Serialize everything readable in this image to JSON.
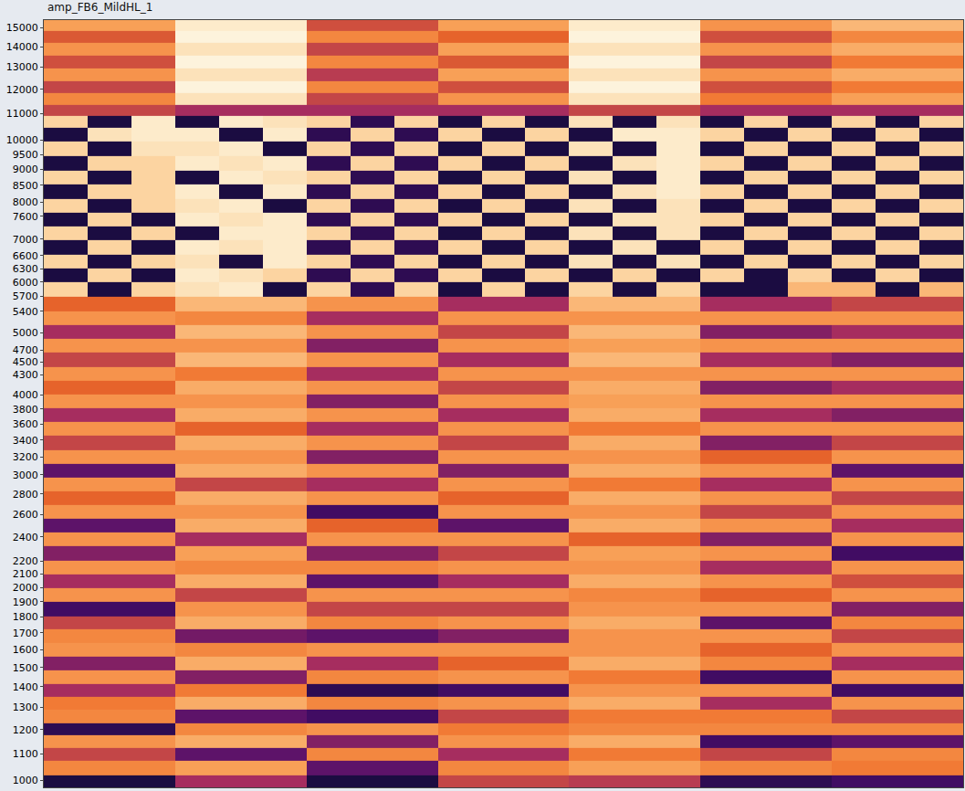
{
  "chart_data": {
    "type": "heatmap",
    "title": "amp_FB6_MildHL_1",
    "log": "y",
    "grid": false,
    "tick_labels": "y",
    "ylim": [
      975,
      15400
    ],
    "yticks": [
      1000,
      1100,
      1200,
      1300,
      1400,
      1500,
      1600,
      1700,
      1800,
      1900,
      2000,
      2100,
      2200,
      2400,
      2600,
      2800,
      3000,
      3200,
      3400,
      3600,
      3800,
      4000,
      4300,
      4500,
      4700,
      5000,
      5400,
      5700,
      6000,
      6300,
      6600,
      7000,
      7600,
      8000,
      8500,
      9000,
      9500,
      10000,
      11000,
      12000,
      13000,
      14000,
      15000
    ],
    "y": [
      990,
      1050,
      1100,
      1150,
      1200,
      1260,
      1320,
      1380,
      1450,
      1520,
      1600,
      1680,
      1760,
      1850,
      1950,
      2050,
      2150,
      2260,
      2380,
      2500,
      2630,
      2760,
      2900,
      3050,
      3200,
      3370,
      3540,
      3720,
      3910,
      4110,
      4320,
      4540,
      4770,
      5010,
      5270,
      5540,
      5850,
      6150,
      6450,
      6800,
      7150,
      7500,
      7900,
      8300,
      8750,
      9200,
      9700,
      10200,
      10700,
      11100,
      11600,
      12100,
      12650,
      13250,
      13850,
      14500,
      15100
    ],
    "z": [
      [
        30,
        30,
        30,
        55,
        55,
        55,
        30,
        30,
        30,
        60,
        60,
        60,
        58,
        58,
        58,
        35,
        35,
        35,
        40,
        40,
        40
      ],
      [
        72,
        72,
        72,
        76,
        76,
        76,
        45,
        45,
        45,
        72,
        72,
        72,
        76,
        76,
        76,
        72,
        72,
        72,
        70,
        70,
        70
      ],
      [
        60,
        60,
        60,
        45,
        45,
        45,
        72,
        72,
        72,
        55,
        55,
        55,
        70,
        70,
        70,
        60,
        60,
        60,
        72,
        72,
        72
      ],
      [
        74,
        74,
        74,
        78,
        78,
        78,
        50,
        50,
        50,
        74,
        74,
        74,
        78,
        78,
        78,
        40,
        40,
        40,
        45,
        45,
        45
      ],
      [
        35,
        35,
        35,
        72,
        72,
        72,
        74,
        74,
        74,
        70,
        70,
        70,
        72,
        72,
        72,
        72,
        72,
        72,
        72,
        72,
        72
      ],
      [
        72,
        72,
        72,
        45,
        45,
        45,
        40,
        40,
        40,
        60,
        60,
        60,
        70,
        70,
        70,
        70,
        70,
        70,
        60,
        60,
        60
      ],
      [
        70,
        70,
        70,
        78,
        78,
        78,
        72,
        72,
        72,
        74,
        74,
        74,
        78,
        78,
        78,
        55,
        55,
        55,
        74,
        74,
        74
      ],
      [
        55,
        55,
        55,
        70,
        70,
        70,
        35,
        35,
        35,
        40,
        40,
        40,
        74,
        74,
        74,
        74,
        74,
        74,
        40,
        40,
        40
      ],
      [
        74,
        74,
        74,
        50,
        50,
        50,
        72,
        72,
        72,
        74,
        74,
        74,
        70,
        70,
        70,
        40,
        40,
        40,
        74,
        74,
        74
      ],
      [
        50,
        50,
        50,
        78,
        78,
        78,
        55,
        55,
        55,
        66,
        66,
        66,
        78,
        78,
        78,
        72,
        72,
        72,
        55,
        55,
        55
      ],
      [
        74,
        74,
        74,
        72,
        72,
        72,
        74,
        74,
        74,
        74,
        74,
        74,
        74,
        74,
        74,
        66,
        66,
        66,
        74,
        74,
        74
      ],
      [
        72,
        72,
        72,
        48,
        48,
        48,
        45,
        45,
        45,
        50,
        50,
        50,
        74,
        74,
        74,
        74,
        74,
        74,
        60,
        60,
        60
      ],
      [
        60,
        60,
        60,
        78,
        78,
        78,
        72,
        72,
        72,
        74,
        74,
        74,
        78,
        78,
        78,
        45,
        45,
        45,
        72,
        72,
        72
      ],
      [
        40,
        40,
        40,
        74,
        74,
        74,
        60,
        60,
        60,
        60,
        60,
        60,
        74,
        74,
        74,
        74,
        74,
        74,
        50,
        50,
        50
      ],
      [
        74,
        74,
        74,
        60,
        60,
        60,
        74,
        74,
        74,
        74,
        74,
        74,
        72,
        72,
        72,
        66,
        66,
        66,
        74,
        74,
        74
      ],
      [
        55,
        55,
        55,
        78,
        78,
        78,
        45,
        45,
        45,
        55,
        55,
        55,
        78,
        78,
        78,
        74,
        74,
        74,
        62,
        62,
        62
      ],
      [
        74,
        74,
        74,
        72,
        72,
        72,
        72,
        72,
        72,
        74,
        74,
        74,
        74,
        74,
        74,
        55,
        55,
        55,
        74,
        74,
        74
      ],
      [
        50,
        50,
        50,
        76,
        76,
        76,
        50,
        50,
        50,
        60,
        60,
        60,
        76,
        76,
        76,
        74,
        74,
        74,
        40,
        40,
        40
      ],
      [
        74,
        74,
        74,
        55,
        55,
        55,
        74,
        74,
        74,
        74,
        74,
        74,
        66,
        66,
        66,
        50,
        50,
        50,
        74,
        74,
        74
      ],
      [
        45,
        45,
        45,
        78,
        78,
        78,
        66,
        66,
        66,
        45,
        45,
        45,
        78,
        78,
        78,
        74,
        74,
        74,
        55,
        55,
        55
      ],
      [
        74,
        74,
        74,
        74,
        74,
        74,
        40,
        40,
        40,
        74,
        74,
        74,
        74,
        74,
        74,
        60,
        60,
        60,
        74,
        74,
        74
      ],
      [
        66,
        66,
        66,
        78,
        78,
        78,
        74,
        74,
        74,
        66,
        66,
        66,
        78,
        78,
        78,
        74,
        74,
        74,
        60,
        60,
        60
      ],
      [
        74,
        74,
        74,
        60,
        60,
        60,
        55,
        55,
        55,
        74,
        74,
        74,
        70,
        70,
        70,
        55,
        55,
        55,
        74,
        74,
        74
      ],
      [
        45,
        45,
        45,
        78,
        78,
        78,
        74,
        74,
        74,
        50,
        50,
        50,
        78,
        78,
        78,
        74,
        74,
        74,
        45,
        45,
        45
      ],
      [
        74,
        74,
        74,
        74,
        74,
        74,
        50,
        50,
        50,
        74,
        74,
        74,
        74,
        74,
        74,
        66,
        66,
        66,
        74,
        74,
        74
      ],
      [
        60,
        60,
        60,
        78,
        78,
        78,
        74,
        74,
        74,
        60,
        60,
        60,
        78,
        78,
        78,
        50,
        50,
        50,
        60,
        60,
        60
      ],
      [
        74,
        74,
        74,
        66,
        66,
        66,
        55,
        55,
        55,
        74,
        74,
        74,
        70,
        70,
        70,
        74,
        74,
        74,
        74,
        74,
        74
      ],
      [
        55,
        55,
        55,
        78,
        78,
        78,
        74,
        74,
        74,
        55,
        55,
        55,
        78,
        78,
        78,
        55,
        55,
        55,
        50,
        50,
        50
      ],
      [
        74,
        74,
        74,
        74,
        74,
        74,
        50,
        50,
        50,
        74,
        74,
        74,
        76,
        76,
        76,
        74,
        74,
        74,
        74,
        74,
        74
      ],
      [
        66,
        66,
        66,
        78,
        78,
        78,
        74,
        74,
        74,
        60,
        60,
        60,
        78,
        78,
        78,
        50,
        50,
        50,
        55,
        55,
        55
      ],
      [
        74,
        74,
        74,
        70,
        70,
        70,
        55,
        55,
        55,
        74,
        74,
        74,
        74,
        74,
        74,
        74,
        74,
        74,
        74,
        74,
        74
      ],
      [
        60,
        60,
        60,
        80,
        80,
        80,
        74,
        74,
        74,
        55,
        55,
        55,
        80,
        80,
        80,
        55,
        55,
        55,
        50,
        50,
        50
      ],
      [
        74,
        74,
        74,
        74,
        74,
        74,
        50,
        50,
        50,
        74,
        74,
        74,
        76,
        76,
        76,
        74,
        74,
        74,
        74,
        74,
        74
      ],
      [
        55,
        55,
        55,
        80,
        80,
        80,
        74,
        74,
        74,
        60,
        60,
        60,
        80,
        80,
        80,
        50,
        50,
        50,
        55,
        55,
        55
      ],
      [
        74,
        74,
        74,
        72,
        72,
        72,
        55,
        55,
        55,
        74,
        74,
        74,
        74,
        74,
        74,
        74,
        74,
        74,
        74,
        74,
        74
      ],
      [
        66,
        66,
        66,
        80,
        80,
        80,
        74,
        74,
        74,
        55,
        55,
        55,
        80,
        80,
        80,
        55,
        55,
        55,
        60,
        60,
        60
      ],
      [
        85,
        30,
        85,
        88,
        90,
        30,
        85,
        35,
        85,
        30,
        85,
        30,
        85,
        30,
        85,
        30,
        30,
        80,
        80,
        30,
        80
      ],
      [
        30,
        85,
        30,
        90,
        88,
        85,
        35,
        85,
        35,
        85,
        30,
        85,
        30,
        85,
        30,
        85,
        30,
        85,
        30,
        85,
        30
      ],
      [
        85,
        30,
        85,
        88,
        30,
        90,
        85,
        35,
        85,
        30,
        85,
        30,
        88,
        30,
        88,
        30,
        85,
        30,
        85,
        30,
        85
      ],
      [
        30,
        85,
        30,
        90,
        88,
        90,
        35,
        85,
        35,
        85,
        30,
        85,
        30,
        88,
        30,
        85,
        30,
        85,
        30,
        85,
        30
      ],
      [
        85,
        30,
        85,
        30,
        90,
        90,
        85,
        35,
        85,
        30,
        85,
        30,
        88,
        30,
        88,
        30,
        85,
        30,
        85,
        30,
        85
      ],
      [
        30,
        85,
        30,
        90,
        88,
        90,
        35,
        85,
        35,
        85,
        30,
        85,
        30,
        88,
        88,
        85,
        30,
        85,
        30,
        85,
        30
      ],
      [
        85,
        30,
        85,
        88,
        90,
        30,
        85,
        35,
        85,
        30,
        85,
        30,
        88,
        30,
        88,
        30,
        85,
        30,
        85,
        30,
        85
      ],
      [
        30,
        85,
        85,
        90,
        30,
        90,
        35,
        85,
        35,
        85,
        30,
        85,
        30,
        88,
        90,
        85,
        30,
        85,
        30,
        85,
        30
      ],
      [
        85,
        30,
        85,
        30,
        90,
        88,
        85,
        35,
        85,
        30,
        85,
        30,
        88,
        30,
        90,
        30,
        85,
        30,
        85,
        30,
        85
      ],
      [
        30,
        85,
        85,
        90,
        88,
        90,
        35,
        85,
        35,
        85,
        30,
        85,
        30,
        88,
        90,
        85,
        30,
        85,
        30,
        85,
        30
      ],
      [
        85,
        30,
        88,
        88,
        90,
        30,
        85,
        35,
        85,
        30,
        85,
        30,
        88,
        30,
        90,
        30,
        85,
        30,
        85,
        30,
        85
      ],
      [
        30,
        88,
        90,
        90,
        30,
        90,
        35,
        85,
        35,
        85,
        30,
        85,
        30,
        90,
        90,
        85,
        30,
        85,
        30,
        85,
        30
      ],
      [
        85,
        30,
        90,
        30,
        90,
        88,
        85,
        35,
        85,
        30,
        85,
        30,
        88,
        30,
        88,
        30,
        85,
        30,
        85,
        30,
        85
      ],
      [
        60,
        60,
        60,
        55,
        55,
        55,
        55,
        55,
        55,
        55,
        55,
        55,
        60,
        60,
        60,
        55,
        55,
        55,
        55,
        55,
        55
      ],
      [
        72,
        72,
        72,
        88,
        88,
        88,
        60,
        60,
        60,
        74,
        74,
        74,
        88,
        88,
        88,
        70,
        70,
        70,
        76,
        76,
        76
      ],
      [
        60,
        60,
        60,
        92,
        92,
        92,
        72,
        72,
        72,
        62,
        62,
        62,
        92,
        92,
        92,
        62,
        62,
        62,
        70,
        70,
        70
      ],
      [
        74,
        74,
        74,
        88,
        88,
        88,
        58,
        58,
        58,
        76,
        76,
        76,
        88,
        88,
        88,
        74,
        74,
        74,
        78,
        78,
        78
      ],
      [
        62,
        62,
        62,
        92,
        92,
        92,
        72,
        72,
        72,
        64,
        64,
        64,
        92,
        92,
        92,
        60,
        60,
        60,
        70,
        70,
        70
      ],
      [
        74,
        74,
        74,
        88,
        88,
        88,
        60,
        60,
        60,
        76,
        76,
        76,
        88,
        88,
        88,
        74,
        74,
        74,
        78,
        78,
        78
      ],
      [
        64,
        64,
        64,
        92,
        92,
        92,
        72,
        72,
        72,
        66,
        66,
        66,
        92,
        92,
        92,
        62,
        62,
        62,
        72,
        72,
        72
      ],
      [
        76,
        76,
        76,
        90,
        90,
        90,
        62,
        62,
        62,
        76,
        76,
        76,
        90,
        90,
        90,
        74,
        74,
        74,
        80,
        80,
        80
      ]
    ]
  }
}
